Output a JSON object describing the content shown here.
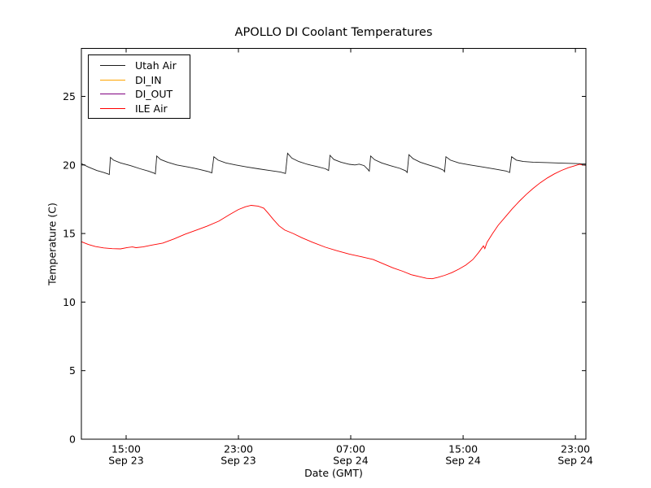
{
  "title": "APOLLO DI Coolant Temperatures",
  "axes": {
    "xlabel": "Date (GMT)",
    "ylabel": "Temperature (C)",
    "x_ticks": [
      {
        "hour": 15,
        "time": "15:00",
        "date": "Sep 23"
      },
      {
        "hour": 23,
        "time": "23:00",
        "date": "Sep 23"
      },
      {
        "hour": 31,
        "time": "07:00",
        "date": "Sep 24"
      },
      {
        "hour": 39,
        "time": "15:00",
        "date": "Sep 24"
      },
      {
        "hour": 47,
        "time": "23:00",
        "date": "Sep 24"
      }
    ],
    "y_ticks": [
      0,
      5,
      10,
      15,
      20,
      25
    ]
  },
  "legend": {
    "items": [
      {
        "label": "Utah Air",
        "color": "#1c1c1c"
      },
      {
        "label": "DI_IN",
        "color": "#ffa500"
      },
      {
        "label": "DI_OUT",
        "color": "#800080"
      },
      {
        "label": "ILE Air",
        "color": "#ff0000"
      }
    ]
  },
  "chart_data": {
    "type": "line",
    "title": "APOLLO DI Coolant Temperatures",
    "xlabel": "Date (GMT)",
    "ylabel": "Temperature (C)",
    "x_units": "hours since Sep 23 00:00 GMT",
    "xlim": [
      11.81,
      47.75
    ],
    "ylim": [
      0,
      28.5
    ],
    "grid": false,
    "legend_position": "upper left",
    "series": [
      {
        "name": "Utah Air",
        "color": "#1c1c1c",
        "width": 0.9,
        "opacity": 1,
        "points": [
          [
            11.81,
            20.1
          ],
          [
            12.3,
            19.85
          ],
          [
            12.9,
            19.6
          ],
          [
            13.4,
            19.45
          ],
          [
            13.7,
            19.35
          ],
          [
            13.8,
            19.3
          ],
          [
            13.88,
            20.55
          ],
          [
            14.1,
            20.35
          ],
          [
            14.6,
            20.15
          ],
          [
            15.3,
            19.95
          ],
          [
            16.0,
            19.72
          ],
          [
            16.6,
            19.55
          ],
          [
            17.0,
            19.4
          ],
          [
            17.08,
            19.35
          ],
          [
            17.18,
            20.65
          ],
          [
            17.45,
            20.4
          ],
          [
            17.95,
            20.2
          ],
          [
            18.6,
            20.0
          ],
          [
            19.4,
            19.85
          ],
          [
            20.2,
            19.68
          ],
          [
            20.9,
            19.5
          ],
          [
            21.1,
            19.42
          ],
          [
            21.25,
            20.6
          ],
          [
            21.55,
            20.35
          ],
          [
            22.1,
            20.15
          ],
          [
            22.8,
            20.0
          ],
          [
            23.6,
            19.85
          ],
          [
            24.4,
            19.72
          ],
          [
            25.2,
            19.6
          ],
          [
            26.0,
            19.48
          ],
          [
            26.35,
            19.38
          ],
          [
            26.5,
            20.85
          ],
          [
            26.8,
            20.5
          ],
          [
            27.3,
            20.25
          ],
          [
            27.9,
            20.05
          ],
          [
            28.6,
            19.88
          ],
          [
            29.2,
            19.72
          ],
          [
            29.42,
            19.6
          ],
          [
            29.52,
            20.7
          ],
          [
            29.8,
            20.4
          ],
          [
            30.3,
            20.2
          ],
          [
            30.9,
            20.05
          ],
          [
            31.3,
            20.0
          ],
          [
            31.6,
            20.06
          ],
          [
            31.95,
            19.95
          ],
          [
            32.2,
            19.7
          ],
          [
            32.32,
            19.55
          ],
          [
            32.42,
            20.65
          ],
          [
            32.7,
            20.38
          ],
          [
            33.2,
            20.15
          ],
          [
            33.8,
            19.95
          ],
          [
            34.5,
            19.75
          ],
          [
            34.9,
            19.58
          ],
          [
            35.02,
            19.45
          ],
          [
            35.14,
            20.75
          ],
          [
            35.45,
            20.45
          ],
          [
            35.95,
            20.2
          ],
          [
            36.55,
            20.0
          ],
          [
            37.2,
            19.8
          ],
          [
            37.6,
            19.62
          ],
          [
            37.68,
            19.5
          ],
          [
            37.78,
            20.6
          ],
          [
            38.1,
            20.35
          ],
          [
            38.7,
            20.15
          ],
          [
            39.5,
            20.0
          ],
          [
            40.4,
            19.85
          ],
          [
            41.3,
            19.7
          ],
          [
            42.1,
            19.55
          ],
          [
            42.32,
            19.45
          ],
          [
            42.46,
            20.6
          ],
          [
            42.8,
            20.35
          ],
          [
            43.3,
            20.25
          ],
          [
            44.0,
            20.2
          ],
          [
            45.0,
            20.17
          ],
          [
            46.0,
            20.13
          ],
          [
            47.0,
            20.1
          ],
          [
            47.75,
            20.07
          ]
        ]
      },
      {
        "name": "DI_IN",
        "color": "#ffa500",
        "width": 1.1,
        "opacity": 1,
        "points": [
          [
            11.81,
            0
          ],
          [
            47.75,
            0
          ]
        ]
      },
      {
        "name": "DI_OUT",
        "color": "#800080",
        "width": 1.1,
        "opacity": 0.65,
        "points": [
          [
            11.81,
            0
          ],
          [
            47.75,
            0
          ]
        ]
      },
      {
        "name": "ILE Air",
        "color": "#ff0000",
        "width": 0.9,
        "opacity": 1,
        "points": [
          [
            11.81,
            14.4
          ],
          [
            12.3,
            14.2
          ],
          [
            12.8,
            14.05
          ],
          [
            13.4,
            13.95
          ],
          [
            14.0,
            13.9
          ],
          [
            14.6,
            13.88
          ],
          [
            15.1,
            13.98
          ],
          [
            15.45,
            14.02
          ],
          [
            15.7,
            13.97
          ],
          [
            16.2,
            14.02
          ],
          [
            16.8,
            14.15
          ],
          [
            17.6,
            14.3
          ],
          [
            18.4,
            14.6
          ],
          [
            19.2,
            14.95
          ],
          [
            20.0,
            15.25
          ],
          [
            20.8,
            15.55
          ],
          [
            21.6,
            15.9
          ],
          [
            22.4,
            16.4
          ],
          [
            23.0,
            16.75
          ],
          [
            23.5,
            16.95
          ],
          [
            23.9,
            17.05
          ],
          [
            24.4,
            17.0
          ],
          [
            24.8,
            16.85
          ],
          [
            25.1,
            16.5
          ],
          [
            25.5,
            16.0
          ],
          [
            25.9,
            15.55
          ],
          [
            26.3,
            15.25
          ],
          [
            26.9,
            15.0
          ],
          [
            27.5,
            14.7
          ],
          [
            28.3,
            14.35
          ],
          [
            29.2,
            14.0
          ],
          [
            30.0,
            13.75
          ],
          [
            30.9,
            13.5
          ],
          [
            31.8,
            13.3
          ],
          [
            32.6,
            13.1
          ],
          [
            33.3,
            12.8
          ],
          [
            34.0,
            12.5
          ],
          [
            34.7,
            12.25
          ],
          [
            35.3,
            12.0
          ],
          [
            35.9,
            11.85
          ],
          [
            36.4,
            11.73
          ],
          [
            36.8,
            11.7
          ],
          [
            37.2,
            11.8
          ],
          [
            37.7,
            11.95
          ],
          [
            38.2,
            12.15
          ],
          [
            38.7,
            12.4
          ],
          [
            39.2,
            12.7
          ],
          [
            39.7,
            13.1
          ],
          [
            40.1,
            13.6
          ],
          [
            40.45,
            14.1
          ],
          [
            40.55,
            13.9
          ],
          [
            40.7,
            14.35
          ],
          [
            41.1,
            15.0
          ],
          [
            41.5,
            15.6
          ],
          [
            42.0,
            16.2
          ],
          [
            42.5,
            16.8
          ],
          [
            43.0,
            17.35
          ],
          [
            43.5,
            17.85
          ],
          [
            44.0,
            18.3
          ],
          [
            44.5,
            18.7
          ],
          [
            45.0,
            19.05
          ],
          [
            45.5,
            19.35
          ],
          [
            46.0,
            19.6
          ],
          [
            46.5,
            19.8
          ],
          [
            47.0,
            19.95
          ],
          [
            47.3,
            20.05
          ],
          [
            47.55,
            20.0
          ],
          [
            47.75,
            19.97
          ]
        ]
      }
    ]
  }
}
